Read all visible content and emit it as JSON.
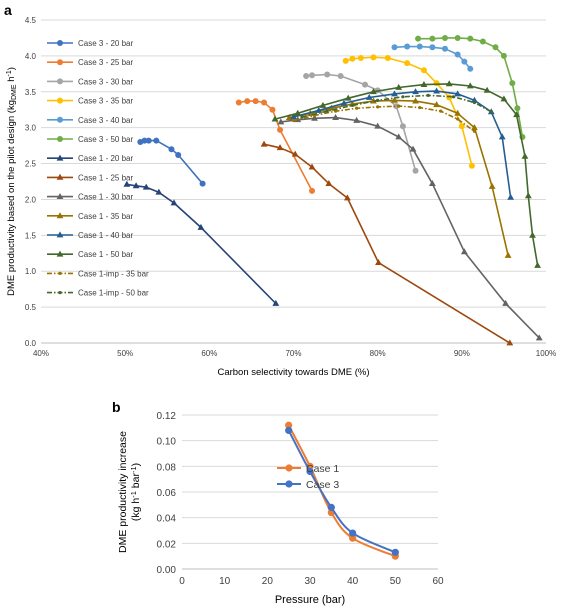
{
  "panel_a_label": "a",
  "panel_b_label": "b",
  "colors": {
    "case3_20": "#3f72c0",
    "case3_25": "#ed7d31",
    "case3_30": "#a5a5a5",
    "case3_35": "#ffc000",
    "case3_40": "#5b9bd5",
    "case3_50": "#70ad47",
    "case1_20": "#264478",
    "case1_25": "#9e480e",
    "case1_30": "#636363",
    "case1_35": "#997300",
    "case1_40": "#255e91",
    "case1_50": "#43682b",
    "case1imp_35": "#997300",
    "case1imp_50": "#43682b"
  },
  "chart_data": [
    {
      "type": "line",
      "panel": "a",
      "xlabel": "Carbon selectivity towards DME (%)",
      "ylabel": "DME productivity based on the pilot design (kgDME h-1)",
      "ylabel_parts": {
        "main": "DME productivity based on the pilot design (kg",
        "sub": "DME",
        "mid": " h",
        "sup": "-1",
        "end": ")"
      },
      "x_ticks": [
        "40%",
        "50%",
        "60%",
        "70%",
        "80%",
        "90%",
        "100%"
      ],
      "y_ticks": [
        "0.0",
        "0.5",
        "1.0",
        "1.5",
        "2.0",
        "2.5",
        "3.0",
        "3.5",
        "4.0",
        "4.5"
      ],
      "xlim": [
        40,
        100
      ],
      "ylim": [
        0,
        4.5
      ],
      "grid": true,
      "legend_position": "left",
      "series": [
        {
          "name": "Case 3 - 20 bar",
          "color_key": "case3_20",
          "marker": "circle",
          "dash": "solid",
          "points": [
            [
              51.8,
              2.8
            ],
            [
              52.3,
              2.82
            ],
            [
              52.8,
              2.82
            ],
            [
              53.7,
              2.82
            ],
            [
              55.5,
              2.7
            ],
            [
              56.3,
              2.62
            ],
            [
              59.2,
              2.22
            ]
          ]
        },
        {
          "name": "Case 3 - 25 bar",
          "color_key": "case3_25",
          "marker": "circle",
          "dash": "solid",
          "points": [
            [
              63.5,
              3.35
            ],
            [
              64.5,
              3.37
            ],
            [
              65.5,
              3.37
            ],
            [
              66.5,
              3.35
            ],
            [
              67.5,
              3.25
            ],
            [
              68.4,
              2.97
            ],
            [
              72.2,
              2.12
            ]
          ]
        },
        {
          "name": "Case 3 - 30 bar",
          "color_key": "case3_30",
          "marker": "circle",
          "dash": "solid",
          "points": [
            [
              71.5,
              3.72
            ],
            [
              72.2,
              3.73
            ],
            [
              74,
              3.74
            ],
            [
              75.6,
              3.72
            ],
            [
              78.5,
              3.6
            ],
            [
              80,
              3.52
            ],
            [
              82.2,
              3.3
            ],
            [
              83,
              3.02
            ],
            [
              84.5,
              2.4
            ]
          ]
        },
        {
          "name": "Case 3 - 35 bar",
          "color_key": "case3_35",
          "marker": "circle",
          "dash": "solid",
          "points": [
            [
              76.2,
              3.93
            ],
            [
              77,
              3.96
            ],
            [
              78,
              3.97
            ],
            [
              79.5,
              3.98
            ],
            [
              81.2,
              3.97
            ],
            [
              83.5,
              3.9
            ],
            [
              85.5,
              3.8
            ],
            [
              87,
              3.62
            ],
            [
              88.5,
              3.42
            ],
            [
              90,
              3.02
            ],
            [
              91.2,
              2.47
            ]
          ]
        },
        {
          "name": "Case 3 - 40 bar",
          "color_key": "case3_40",
          "marker": "circle",
          "dash": "solid",
          "points": [
            [
              82,
              4.12
            ],
            [
              83.5,
              4.13
            ],
            [
              85,
              4.13
            ],
            [
              86.5,
              4.12
            ],
            [
              88,
              4.1
            ],
            [
              89.5,
              4.02
            ],
            [
              90.3,
              3.92
            ],
            [
              91,
              3.82
            ]
          ]
        },
        {
          "name": "Case 3 - 50 bar",
          "color_key": "case3_50",
          "marker": "circle",
          "dash": "solid",
          "points": [
            [
              84.8,
              4.24
            ],
            [
              86.5,
              4.24
            ],
            [
              88,
              4.25
            ],
            [
              89.5,
              4.25
            ],
            [
              91,
              4.24
            ],
            [
              92.5,
              4.2
            ],
            [
              94,
              4.12
            ],
            [
              95,
              4.0
            ],
            [
              96,
              3.62
            ],
            [
              96.6,
              3.27
            ],
            [
              97.2,
              2.87
            ]
          ]
        },
        {
          "name": "Case 1 - 20 bar",
          "color_key": "case1_20",
          "marker": "triangle",
          "dash": "solid",
          "points": [
            [
              50.2,
              2.21
            ],
            [
              51.3,
              2.19
            ],
            [
              52.5,
              2.17
            ],
            [
              54,
              2.1
            ],
            [
              55.8,
              1.95
            ],
            [
              59,
              1.61
            ],
            [
              67.9,
              0.55
            ]
          ]
        },
        {
          "name": "Case 1 - 25 bar",
          "color_key": "case1_25",
          "marker": "triangle",
          "dash": "solid",
          "points": [
            [
              66.5,
              2.77
            ],
            [
              68.4,
              2.72
            ],
            [
              70.2,
              2.63
            ],
            [
              72.2,
              2.45
            ],
            [
              74.2,
              2.22
            ],
            [
              76.4,
              2.02
            ],
            [
              80.1,
              1.12
            ],
            [
              95.7,
              0.0
            ]
          ]
        },
        {
          "name": "Case 1 - 30 bar",
          "color_key": "case1_30",
          "marker": "triangle",
          "dash": "solid",
          "points": [
            [
              68.5,
              3.08
            ],
            [
              70.5,
              3.11
            ],
            [
              72.5,
              3.13
            ],
            [
              75,
              3.14
            ],
            [
              77.5,
              3.1
            ],
            [
              80,
              3.02
            ],
            [
              82.5,
              2.87
            ],
            [
              84.2,
              2.7
            ],
            [
              86.5,
              2.22
            ],
            [
              90.3,
              1.27
            ],
            [
              95.2,
              0.55
            ],
            [
              99.2,
              0.07
            ]
          ]
        },
        {
          "name": "Case 1 - 35 bar",
          "color_key": "case1_35",
          "marker": "triangle",
          "dash": "solid",
          "points": [
            [
              69.5,
              3.14
            ],
            [
              72,
              3.2
            ],
            [
              74.5,
              3.27
            ],
            [
              77,
              3.33
            ],
            [
              79.5,
              3.37
            ],
            [
              82,
              3.38
            ],
            [
              84.5,
              3.37
            ],
            [
              87,
              3.32
            ],
            [
              89.5,
              3.2
            ],
            [
              91.5,
              3.0
            ],
            [
              93.6,
              2.18
            ],
            [
              95.5,
              1.22
            ]
          ]
        },
        {
          "name": "Case 1 - 40 bar",
          "color_key": "case1_40",
          "marker": "triangle",
          "dash": "solid",
          "points": [
            [
              70,
              3.15
            ],
            [
              73,
              3.24
            ],
            [
              76,
              3.34
            ],
            [
              79,
              3.42
            ],
            [
              82,
              3.47
            ],
            [
              84.5,
              3.5
            ],
            [
              87,
              3.51
            ],
            [
              89.5,
              3.47
            ],
            [
              91.5,
              3.38
            ],
            [
              93.5,
              3.22
            ],
            [
              94.8,
              2.87
            ],
            [
              95.8,
              2.03
            ]
          ]
        },
        {
          "name": "Case 1 - 50 bar",
          "color_key": "case1_50",
          "marker": "triangle",
          "dash": "solid",
          "points": [
            [
              67.8,
              3.12
            ],
            [
              70.5,
              3.2
            ],
            [
              73.5,
              3.31
            ],
            [
              76.5,
              3.41
            ],
            [
              79.5,
              3.5
            ],
            [
              82.5,
              3.56
            ],
            [
              85.5,
              3.6
            ],
            [
              88.5,
              3.61
            ],
            [
              91,
              3.58
            ],
            [
              93,
              3.52
            ],
            [
              95,
              3.4
            ],
            [
              96.5,
              3.18
            ],
            [
              97.5,
              2.6
            ],
            [
              97.9,
              2.05
            ],
            [
              98.4,
              1.5
            ],
            [
              99,
              1.08
            ]
          ]
        },
        {
          "name": "Case 1-imp - 35 bar",
          "color_key": "case1imp_35",
          "marker": "dot",
          "dash": "dashdot",
          "points": [
            [
              70,
              3.1
            ],
            [
              72.5,
              3.17
            ],
            [
              75,
              3.23
            ],
            [
              77.5,
              3.27
            ],
            [
              80,
              3.29
            ],
            [
              82.5,
              3.3
            ],
            [
              85,
              3.28
            ],
            [
              87.5,
              3.23
            ],
            [
              89.5,
              3.12
            ],
            [
              91.5,
              2.95
            ]
          ]
        },
        {
          "name": "Case 1-imp - 50 bar",
          "color_key": "case1imp_50",
          "marker": "dot",
          "dash": "dashdot",
          "points": [
            [
              71,
              3.15
            ],
            [
              74,
              3.23
            ],
            [
              77,
              3.31
            ],
            [
              80,
              3.38
            ],
            [
              83,
              3.43
            ],
            [
              86,
              3.45
            ],
            [
              89,
              3.43
            ],
            [
              91.5,
              3.35
            ],
            [
              93.5,
              3.22
            ]
          ]
        }
      ]
    },
    {
      "type": "line",
      "panel": "b",
      "xlabel": "Pressure (bar)",
      "ylabel_line1": "DME productivity increase",
      "ylabel_line2_parts": {
        "a": "(kg h",
        "sup1": "-1",
        "b": " bar",
        "sup2": "-1",
        "c": ")"
      },
      "x_ticks": [
        "0",
        "10",
        "20",
        "30",
        "40",
        "50",
        "60"
      ],
      "y_ticks": [
        "0.00",
        "0.02",
        "0.04",
        "0.06",
        "0.08",
        "0.10",
        "0.12"
      ],
      "xlim": [
        0,
        60
      ],
      "ylim": [
        0,
        0.12
      ],
      "grid": true,
      "legend_position": "center",
      "series": [
        {
          "name": "Case 1",
          "color": "#ed7d31",
          "x": [
            25,
            30,
            35,
            40,
            50
          ],
          "y": [
            0.112,
            0.08,
            0.044,
            0.024,
            0.01
          ]
        },
        {
          "name": "Case 3",
          "color": "#4472c4",
          "x": [
            25,
            30,
            35,
            40,
            50
          ],
          "y": [
            0.108,
            0.076,
            0.048,
            0.028,
            0.013
          ]
        }
      ]
    }
  ]
}
